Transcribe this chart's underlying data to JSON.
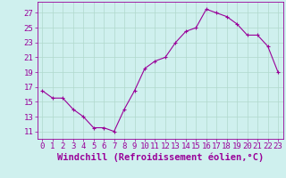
{
  "x": [
    0,
    1,
    2,
    3,
    4,
    5,
    6,
    7,
    8,
    9,
    10,
    11,
    12,
    13,
    14,
    15,
    16,
    17,
    18,
    19,
    20,
    21,
    22,
    23
  ],
  "y": [
    16.5,
    15.5,
    15.5,
    14.0,
    13.0,
    11.5,
    11.5,
    11.0,
    14.0,
    16.5,
    19.5,
    20.5,
    21.0,
    23.0,
    24.5,
    25.0,
    27.5,
    27.0,
    26.5,
    25.5,
    24.0,
    24.0,
    22.5,
    19.0
  ],
  "line_color": "#990099",
  "marker": "+",
  "marker_size": 3,
  "xlabel": "Windchill (Refroidissement éolien,°C)",
  "ylabel_ticks": [
    11,
    13,
    15,
    17,
    19,
    21,
    23,
    25,
    27
  ],
  "ylim": [
    10.0,
    28.5
  ],
  "xlim": [
    -0.5,
    23.5
  ],
  "background_color": "#cff0ee",
  "grid_color": "#b0d8cc",
  "tick_fontsize": 6.5,
  "xlabel_fontsize": 7.5
}
